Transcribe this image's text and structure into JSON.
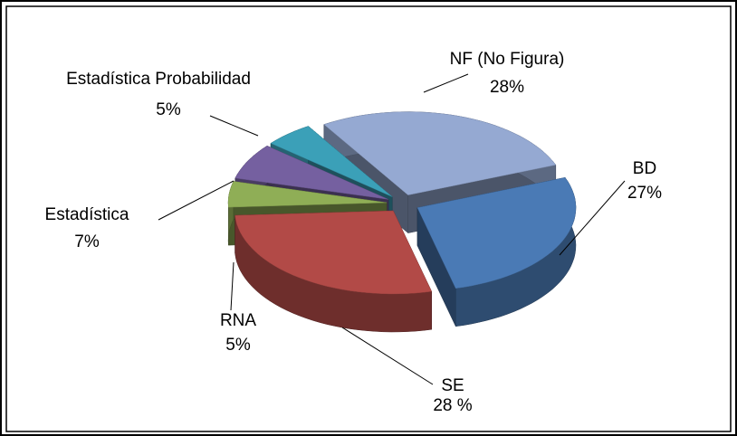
{
  "chart_data": {
    "type": "pie",
    "categories": [
      "NF (No Figura)",
      "BD",
      "SE",
      "RNA",
      "Estadística",
      "Estadística Probabilidad"
    ],
    "values": [
      28,
      27,
      28,
      5,
      7,
      5
    ],
    "value_labels": [
      "28%",
      "27%",
      "28 %",
      "5%",
      "7%",
      "5%"
    ],
    "colors": [
      "#95a9d2",
      "#4a7ab5",
      "#b24a47",
      "#8fae56",
      "#7560a0",
      "#3ba0b8"
    ]
  }
}
